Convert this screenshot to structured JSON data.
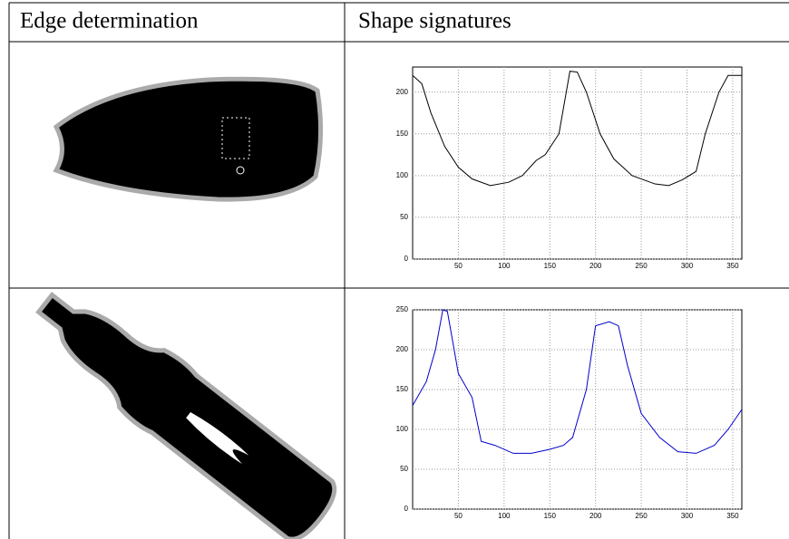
{
  "table": {
    "headers": [
      "Edge determination",
      "Shape signatures"
    ],
    "charts": [
      {
        "type": "line",
        "color": "#000000",
        "grid": true,
        "x": [
          0,
          10,
          20,
          35,
          50,
          65,
          85,
          105,
          120,
          135,
          145,
          160,
          168,
          172,
          180,
          190,
          205,
          220,
          240,
          265,
          280,
          295,
          310,
          320,
          335,
          345,
          360
        ],
        "values": [
          220,
          210,
          175,
          135,
          110,
          96,
          88,
          92,
          100,
          118,
          125,
          150,
          200,
          225,
          224,
          200,
          150,
          120,
          100,
          90,
          88,
          95,
          105,
          150,
          200,
          220,
          220
        ],
        "xlim": [
          0,
          360
        ],
        "ylim": [
          0,
          230
        ],
        "xticks": [
          50,
          100,
          150,
          200,
          250,
          300,
          350
        ],
        "yticks": [
          0,
          50,
          100,
          150,
          200
        ]
      },
      {
        "type": "line",
        "color": "#0000cc",
        "grid": true,
        "x": [
          0,
          15,
          25,
          33,
          38,
          50,
          65,
          75,
          90,
          110,
          130,
          150,
          165,
          175,
          190,
          200,
          215,
          225,
          235,
          250,
          270,
          290,
          310,
          330,
          345,
          360
        ],
        "values": [
          130,
          160,
          200,
          250,
          248,
          170,
          140,
          85,
          80,
          70,
          70,
          75,
          80,
          90,
          150,
          230,
          235,
          230,
          180,
          120,
          90,
          72,
          70,
          80,
          100,
          125
        ],
        "xlim": [
          0,
          360
        ],
        "ylim": [
          0,
          250
        ],
        "xticks": [
          50,
          100,
          150,
          200,
          250,
          300,
          350
        ],
        "yticks": [
          0,
          50,
          100,
          150,
          200,
          250
        ]
      }
    ]
  }
}
